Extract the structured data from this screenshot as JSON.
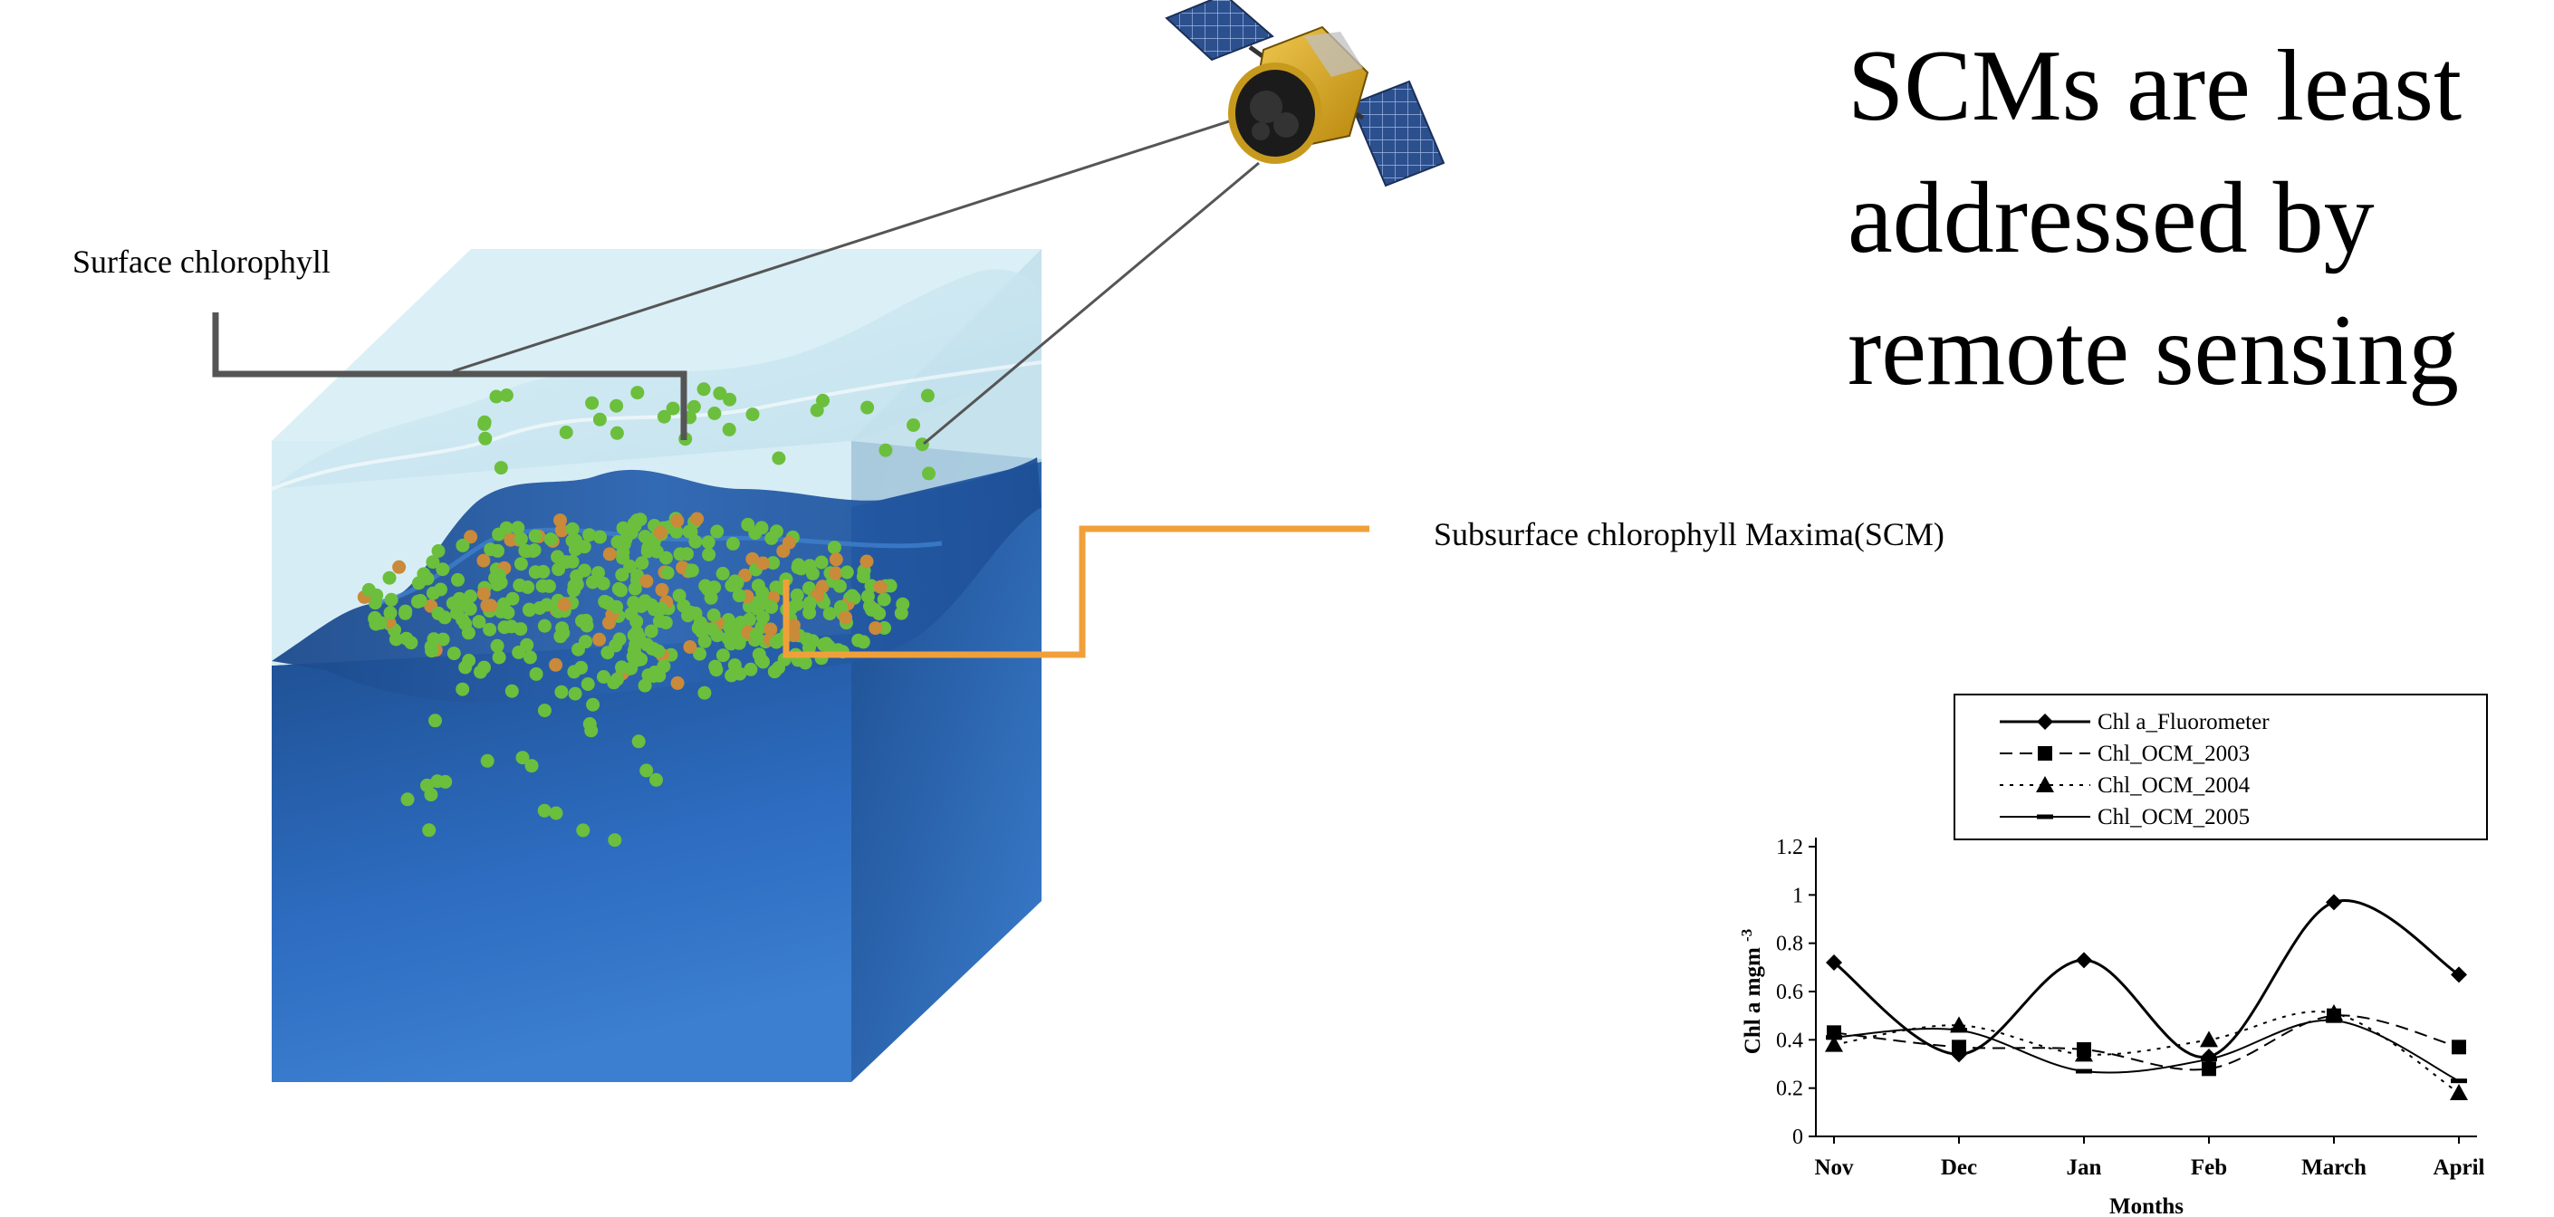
{
  "labels": {
    "surface": "Surface chlorophyll",
    "scm": "Subsurface chlorophyll Maxima(SCM)"
  },
  "headline": {
    "line1": "SCMs are least",
    "line2": "addressed by",
    "line3": "remote sensing"
  },
  "colors": {
    "water_light": "#cfe8f1",
    "water_deep": "#1f5faa",
    "chl_green": "#6bbf3c",
    "chl_orange": "#c98a3a",
    "callout_gray": "#555555",
    "callout_orange": "#f0a03a"
  },
  "icons": {
    "satellite": "satellite-icon"
  },
  "chart_data": {
    "type": "line",
    "xlabel": "Months",
    "ylabel": "Chl a mgm",
    "ylabel_sup": "-3",
    "categories": [
      "Nov",
      "Dec",
      "Jan",
      "Feb",
      "March",
      "April"
    ],
    "ylim": [
      0,
      1.2
    ],
    "yticks": [
      "0",
      "0.2",
      "0.4",
      "0.6",
      "0.8",
      "1",
      "1.2"
    ],
    "legend_position": "top",
    "series": [
      {
        "name": "Chl a_Fluorometer",
        "values": [
          0.72,
          0.34,
          0.73,
          0.33,
          0.97,
          0.67
        ],
        "marker": "diamond",
        "dash": "solid",
        "width": 3
      },
      {
        "name": "Chl_OCM_2003",
        "values": [
          0.43,
          0.37,
          0.36,
          0.28,
          0.5,
          0.37
        ],
        "marker": "square",
        "dash": "dash",
        "width": 2
      },
      {
        "name": "Chl_OCM_2004",
        "values": [
          0.38,
          0.46,
          0.34,
          0.4,
          0.51,
          0.18
        ],
        "marker": "triangle",
        "dash": "dot",
        "width": 2
      },
      {
        "name": "Chl_OCM_2005",
        "values": [
          0.41,
          0.44,
          0.27,
          0.32,
          0.48,
          0.23
        ],
        "marker": "dash",
        "dash": "solid",
        "width": 2
      }
    ]
  }
}
